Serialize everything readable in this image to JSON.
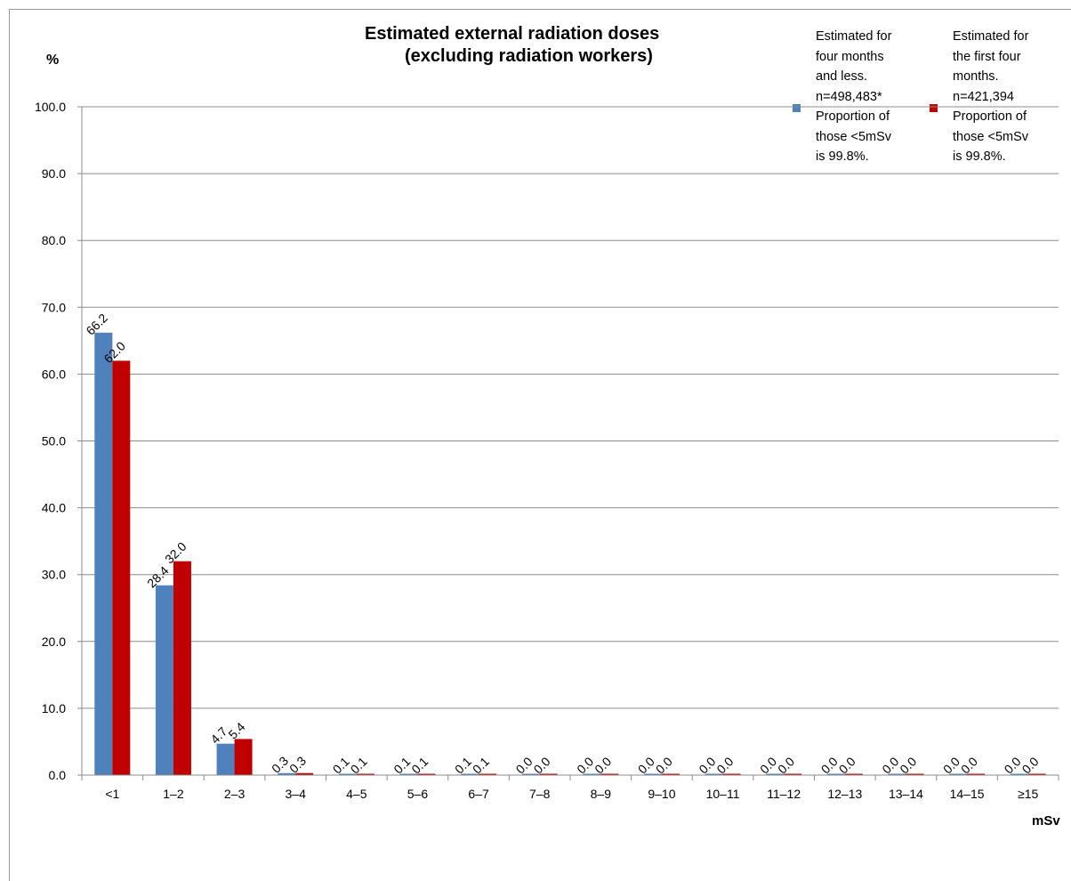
{
  "chart_data": {
    "type": "bar",
    "title_lines": [
      "Estimated external radiation doses",
      "(excluding radiation workers)"
    ],
    "y_unit": "%",
    "x_unit": "mSv",
    "ylim": [
      0,
      100
    ],
    "y_ticks": [
      "0.0",
      "10.0",
      "20.0",
      "30.0",
      "40.0",
      "50.0",
      "60.0",
      "70.0",
      "80.0",
      "90.0",
      "100.0"
    ],
    "grid": true,
    "legend_placement": "top-right",
    "categories": [
      "<1",
      "1–2",
      "2–3",
      "3–4",
      "4–5",
      "5–6",
      "6–7",
      "7–8",
      "8–9",
      "9–10",
      "10–11",
      "11–12",
      "12–13",
      "13–14",
      "14–15",
      "≥15"
    ],
    "series": [
      {
        "color": "#4f81bd",
        "legend_lines": [
          "Estimated for",
          "four months",
          "and less.",
          "n=498,483*",
          "Proportion of",
          "those <5mSv",
          "is 99.8%."
        ],
        "values": [
          66.2,
          28.4,
          4.7,
          0.3,
          0.1,
          0.1,
          0.1,
          0.0,
          0.0,
          0.0,
          0.0,
          0.0,
          0.0,
          0.0,
          0.0,
          0.0
        ],
        "labels": [
          "66.2",
          "28.4",
          "4.7",
          "0.3",
          "0.1",
          "0.1",
          "0.1",
          "0.0",
          "0.0",
          "0.0",
          "0.0",
          "0.0",
          "0.0",
          "0.0",
          "0.0",
          "0.0"
        ]
      },
      {
        "color": "#c00000",
        "legend_lines": [
          "Estimated for",
          "the first four",
          "months.",
          "n=421,394",
          "Proportion of",
          "those <5mSv",
          "is 99.8%."
        ],
        "values": [
          62.0,
          32.0,
          5.4,
          0.3,
          0.1,
          0.1,
          0.1,
          0.0,
          0.0,
          0.0,
          0.0,
          0.0,
          0.0,
          0.0,
          0.0,
          0.0
        ],
        "labels": [
          "62.0",
          "32.0",
          "5.4",
          "0.3",
          "0.1",
          "0.1",
          "0.1",
          "0.0",
          "0.0",
          "0.0",
          "0.0",
          "0.0",
          "0.0",
          "0.0",
          "0.0",
          "0.0"
        ]
      }
    ]
  }
}
